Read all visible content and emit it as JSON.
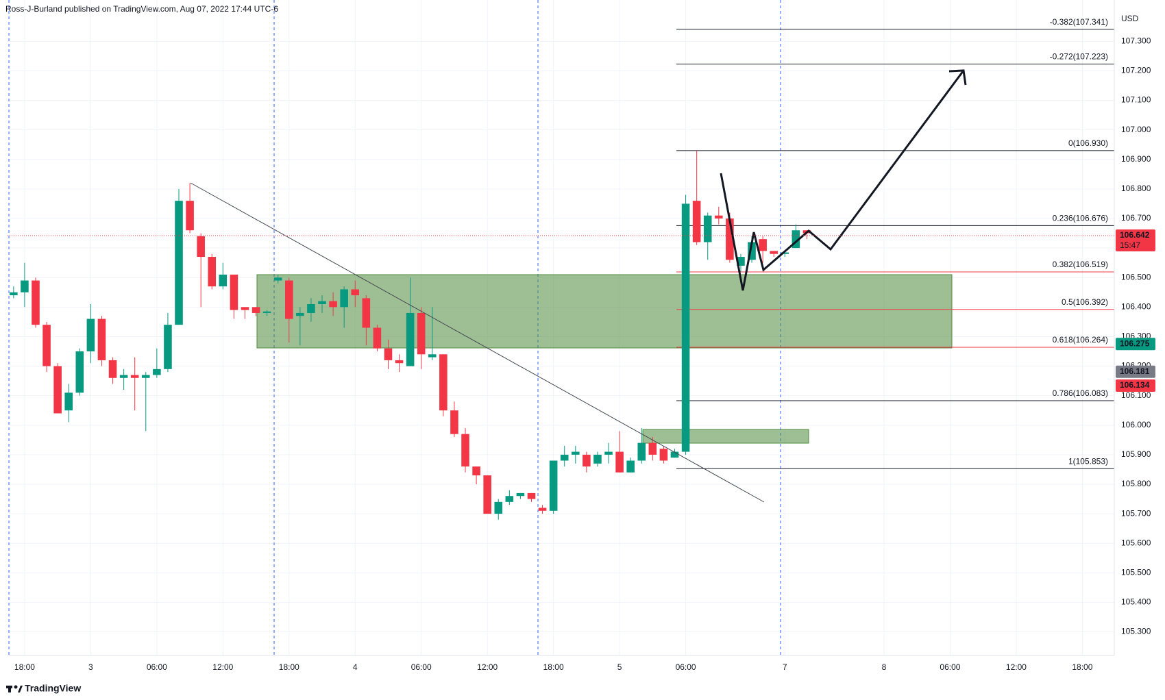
{
  "header": "Ross-J-Burland published on TradingView.com, Aug 07, 2022 17:44 UTC-6",
  "footer": "TradingView",
  "chart_data": {
    "type": "candlestick",
    "currency": "USD",
    "up_color": "#089981",
    "down_color": "#f23645",
    "grid": true,
    "xlim": [
      -1.55,
      98.9
    ],
    "ylim": [
      105.22,
      107.44
    ],
    "xticks": [
      {
        "value": 0,
        "label": "18:00"
      },
      {
        "value": 6,
        "label": "3"
      },
      {
        "value": 12,
        "label": "06:00"
      },
      {
        "value": 18,
        "label": "12:00"
      },
      {
        "value": 24,
        "label": "18:00"
      },
      {
        "value": 30,
        "label": "4"
      },
      {
        "value": 36,
        "label": "06:00"
      },
      {
        "value": 42,
        "label": "12:00"
      },
      {
        "value": 48,
        "label": "18:00"
      },
      {
        "value": 54,
        "label": "5"
      },
      {
        "value": 60,
        "label": "06:00"
      },
      {
        "value": 69,
        "label": "7"
      },
      {
        "value": 78,
        "label": "8"
      },
      {
        "value": 84,
        "label": "06:00"
      },
      {
        "value": 90,
        "label": "12:00"
      },
      {
        "value": 96,
        "label": "18:00"
      }
    ],
    "yticks": [
      {
        "value": 105.3,
        "label": "105.300"
      },
      {
        "value": 105.4,
        "label": "105.400"
      },
      {
        "value": 105.5,
        "label": "105.500"
      },
      {
        "value": 105.6,
        "label": "105.600"
      },
      {
        "value": 105.7,
        "label": "105.700"
      },
      {
        "value": 105.8,
        "label": "105.800"
      },
      {
        "value": 105.9,
        "label": "105.900"
      },
      {
        "value": 106,
        "label": "106.000"
      },
      {
        "value": 106.1,
        "label": "106.100"
      },
      {
        "value": 106.2,
        "label": "106.200"
      },
      {
        "value": 106.3,
        "label": "106.300"
      },
      {
        "value": 106.4,
        "label": "106.400"
      },
      {
        "value": 106.5,
        "label": "106.500"
      },
      {
        "value": 106.6,
        "label": "106.600"
      },
      {
        "value": 106.7,
        "label": "106.700"
      },
      {
        "value": 106.8,
        "label": "106.800"
      },
      {
        "value": 106.9,
        "label": "106.900"
      },
      {
        "value": 107,
        "label": "107.000"
      },
      {
        "value": 107.1,
        "label": "107.100"
      },
      {
        "value": 107.2,
        "label": "107.200"
      },
      {
        "value": 107.3,
        "label": "107.300"
      }
    ],
    "x": [
      -1,
      0,
      1,
      2,
      3,
      4,
      5,
      6,
      7,
      8,
      9,
      10,
      11,
      12,
      13,
      14,
      15,
      16,
      17,
      18,
      19,
      20,
      21,
      22,
      23,
      24,
      25,
      26,
      27,
      28,
      29,
      30,
      31,
      32,
      33,
      34,
      35,
      36,
      37,
      38,
      39,
      40,
      41,
      42,
      43,
      44,
      45,
      46,
      47,
      48,
      49,
      50,
      51,
      52,
      53,
      54,
      55,
      56,
      57,
      58,
      59,
      60,
      61,
      62,
      63,
      64,
      65,
      66,
      67,
      68,
      69,
      70,
      71
    ],
    "ohlc": [
      [
        106.44,
        106.47,
        106.43,
        106.45
      ],
      [
        106.45,
        106.55,
        106.4,
        106.49
      ],
      [
        106.49,
        106.5,
        106.33,
        106.34
      ],
      [
        106.34,
        106.35,
        106.18,
        106.2
      ],
      [
        106.2,
        106.21,
        106.04,
        106.04
      ],
      [
        106.05,
        106.14,
        106.01,
        106.11
      ],
      [
        106.11,
        106.26,
        106.1,
        106.25
      ],
      [
        106.25,
        106.41,
        106.21,
        106.36
      ],
      [
        106.36,
        106.37,
        106.2,
        106.22
      ],
      [
        106.22,
        106.23,
        106.14,
        106.16
      ],
      [
        106.16,
        106.19,
        106.12,
        106.17
      ],
      [
        106.17,
        106.23,
        106.05,
        106.16
      ],
      [
        106.16,
        106.18,
        105.98,
        106.17
      ],
      [
        106.17,
        106.26,
        106.16,
        106.19
      ],
      [
        106.19,
        106.38,
        106.18,
        106.34
      ],
      [
        106.34,
        106.8,
        106.34,
        106.76
      ],
      [
        106.76,
        106.82,
        106.65,
        106.66
      ],
      [
        106.64,
        106.65,
        106.4,
        106.57
      ],
      [
        106.57,
        106.58,
        106.46,
        106.47
      ],
      [
        106.47,
        106.55,
        106.46,
        106.51
      ],
      [
        106.51,
        106.51,
        106.36,
        106.39
      ],
      [
        106.4,
        106.4,
        106.36,
        106.39
      ],
      [
        106.4,
        106.4,
        106.37,
        106.38
      ],
      [
        106.38,
        106.39,
        106.37,
        106.385
      ],
      [
        106.49,
        106.51,
        106.48,
        106.5
      ],
      [
        106.49,
        106.5,
        106.28,
        106.36
      ],
      [
        106.37,
        106.4,
        106.27,
        106.38
      ],
      [
        106.38,
        106.43,
        106.35,
        106.41
      ],
      [
        106.41,
        106.44,
        106.38,
        106.42
      ],
      [
        106.42,
        106.45,
        106.37,
        106.4
      ],
      [
        106.4,
        106.47,
        106.33,
        106.46
      ],
      [
        106.46,
        106.49,
        106.4,
        106.44
      ],
      [
        106.43,
        106.44,
        106.27,
        106.33
      ],
      [
        106.33,
        106.34,
        106.25,
        106.26
      ],
      [
        106.26,
        106.29,
        106.19,
        106.22
      ],
      [
        106.22,
        106.24,
        106.18,
        106.21
      ],
      [
        106.2,
        106.5,
        106.2,
        106.38
      ],
      [
        106.38,
        106.4,
        106.19,
        106.24
      ],
      [
        106.23,
        106.4,
        106.22,
        106.24
      ],
      [
        106.24,
        106.24,
        106.03,
        106.05
      ],
      [
        106.05,
        106.08,
        105.96,
        105.97
      ],
      [
        105.97,
        105.99,
        105.84,
        105.86
      ],
      [
        105.86,
        105.86,
        105.8,
        105.83
      ],
      [
        105.83,
        105.83,
        105.7,
        105.7
      ],
      [
        105.7,
        105.75,
        105.68,
        105.74
      ],
      [
        105.74,
        105.78,
        105.73,
        105.76
      ],
      [
        105.76,
        105.77,
        105.75,
        105.77
      ],
      [
        105.77,
        105.77,
        105.74,
        105.75
      ],
      [
        105.72,
        105.73,
        105.7,
        105.71
      ],
      [
        105.71,
        105.88,
        105.7,
        105.88
      ],
      [
        105.88,
        105.93,
        105.86,
        105.9
      ],
      [
        105.9,
        105.93,
        105.87,
        105.91
      ],
      [
        105.9,
        105.91,
        105.84,
        105.86
      ],
      [
        105.87,
        105.91,
        105.86,
        105.9
      ],
      [
        105.9,
        105.94,
        105.87,
        105.91
      ],
      [
        105.91,
        105.98,
        105.84,
        105.84
      ],
      [
        105.84,
        105.89,
        105.84,
        105.88
      ],
      [
        105.88,
        105.99,
        105.87,
        105.94
      ],
      [
        105.94,
        105.96,
        105.88,
        105.9
      ],
      [
        105.92,
        105.93,
        105.87,
        105.88
      ],
      [
        105.89,
        105.92,
        105.89,
        105.91
      ],
      [
        105.91,
        106.78,
        105.9,
        106.75
      ],
      [
        106.76,
        106.93,
        106.61,
        106.62
      ],
      [
        106.62,
        106.72,
        106.56,
        106.71
      ],
      [
        106.71,
        106.74,
        106.68,
        106.7
      ],
      [
        106.7,
        106.72,
        106.55,
        106.56
      ],
      [
        106.54,
        106.58,
        106.52,
        106.57
      ],
      [
        106.56,
        106.64,
        106.55,
        106.62
      ],
      [
        106.63,
        106.64,
        106.55,
        106.59
      ],
      [
        106.59,
        106.59,
        106.57,
        106.58
      ],
      [
        106.58,
        106.59,
        106.57,
        106.585
      ],
      [
        106.6,
        106.68,
        106.6,
        106.66
      ],
      [
        106.66,
        106.66,
        106.63,
        106.65
      ]
    ],
    "fib_levels": [
      {
        "label": "-0.382(107.341)",
        "value": 107.341,
        "color": "#131722"
      },
      {
        "label": "-0.272(107.223)",
        "value": 107.223,
        "color": "#131722"
      },
      {
        "label": "0(106.930)",
        "value": 106.93,
        "color": "#131722"
      },
      {
        "label": "0.236(106.676)",
        "value": 106.676,
        "color": "#131722"
      },
      {
        "label": "0.382(106.519)",
        "value": 106.519,
        "color": "#f23645"
      },
      {
        "label": "0.5(106.392)",
        "value": 106.392,
        "color": "#f23645"
      },
      {
        "label": "0.618(106.264)",
        "value": 106.264,
        "color": "#f23645"
      },
      {
        "label": "0.786(106.083)",
        "value": 106.083,
        "color": "#131722"
      },
      {
        "label": "1(105.853)",
        "value": 105.853,
        "color": "#131722"
      }
    ],
    "last_price": {
      "value": 106.642,
      "countdown": "15:47",
      "color": "#f23645"
    },
    "price_tags": [
      {
        "value": 106.275,
        "color": "#089981"
      },
      {
        "value": 106.181,
        "color": "#787b86"
      },
      {
        "value": 106.134,
        "color": "#f23645"
      }
    ]
  }
}
